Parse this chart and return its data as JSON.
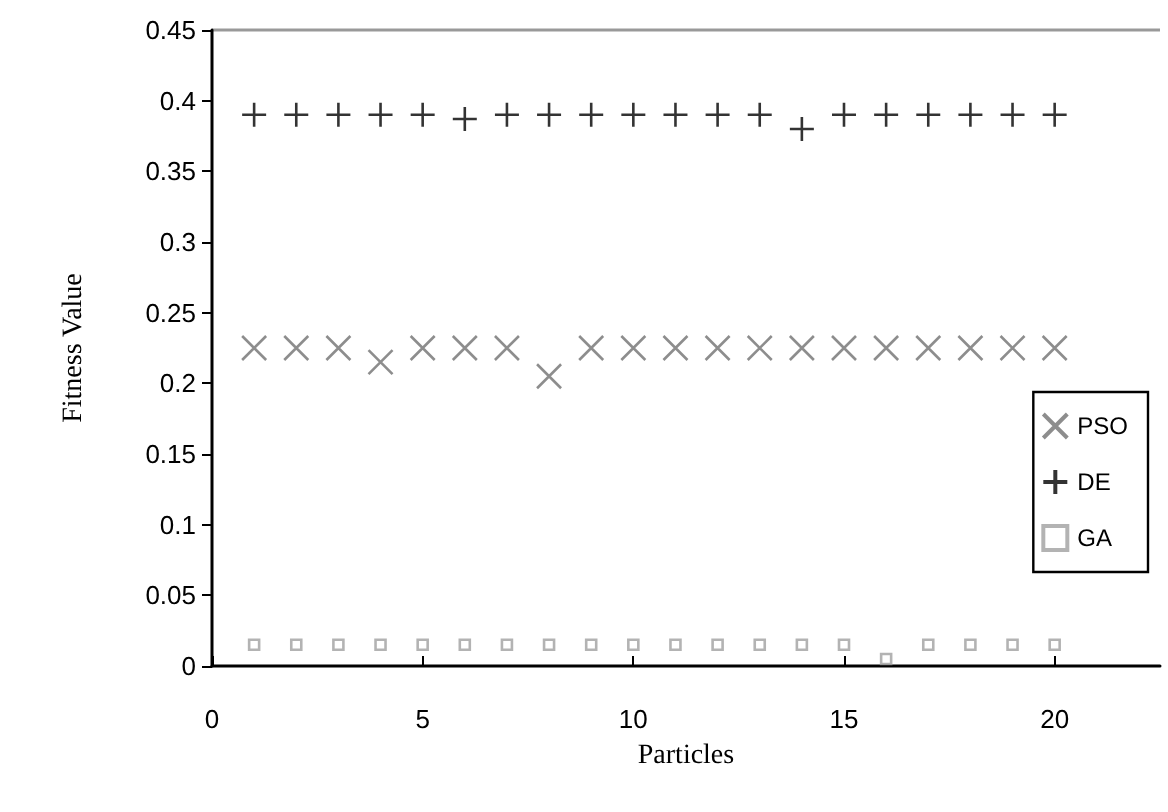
{
  "chart_data": {
    "type": "scatter",
    "xlabel": "Particles",
    "ylabel": "Fitness Value",
    "x": [
      1,
      2,
      3,
      4,
      5,
      6,
      7,
      8,
      9,
      10,
      11,
      12,
      13,
      14,
      15,
      16,
      17,
      18,
      19,
      20
    ],
    "series": [
      {
        "name": "PSO",
        "color": "#707070",
        "marker": "x",
        "values": [
          0.225,
          0.225,
          0.225,
          0.215,
          0.225,
          0.225,
          0.225,
          0.205,
          0.225,
          0.225,
          0.225,
          0.225,
          0.225,
          0.225,
          0.225,
          0.225,
          0.225,
          0.225,
          0.225,
          0.225
        ]
      },
      {
        "name": "DE",
        "color": "#000000",
        "marker": "cross",
        "values": [
          0.39,
          0.39,
          0.39,
          0.39,
          0.39,
          0.387,
          0.39,
          0.39,
          0.39,
          0.39,
          0.39,
          0.39,
          0.39,
          0.38,
          0.39,
          0.39,
          0.39,
          0.39,
          0.39,
          0.39
        ]
      },
      {
        "name": "GA",
        "color": "#a0a0a0",
        "marker": "square",
        "values": [
          0.015,
          0.015,
          0.015,
          0.015,
          0.015,
          0.015,
          0.015,
          0.015,
          0.015,
          0.015,
          0.015,
          0.015,
          0.015,
          0.015,
          0.015,
          0.005,
          0.015,
          0.015,
          0.015,
          0.015
        ]
      }
    ],
    "xlim": [
      0,
      22.5
    ],
    "xticks": [
      0,
      5,
      10,
      15,
      20
    ],
    "ylim": [
      0,
      0.45
    ],
    "yticks": [
      0,
      0.05,
      0.1,
      0.15,
      0.2,
      0.25,
      0.3,
      0.35,
      0.4,
      0.45
    ],
    "grid": false,
    "legend": "right"
  }
}
